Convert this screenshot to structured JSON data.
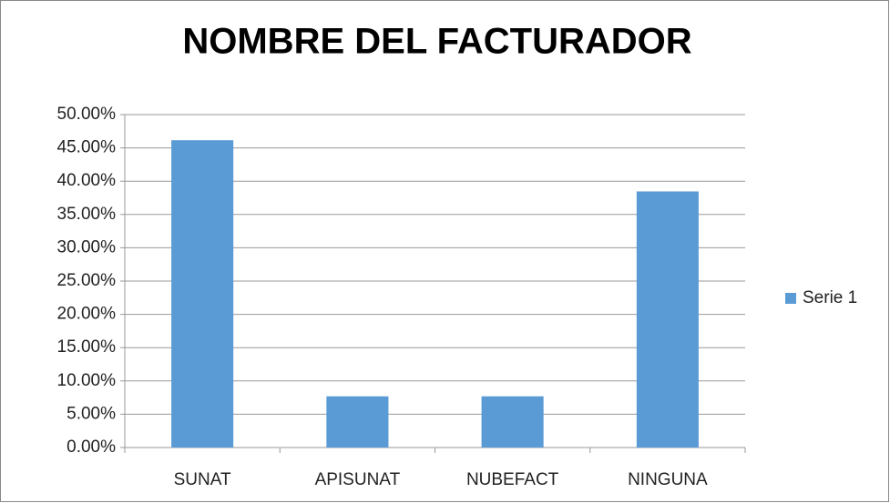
{
  "chart_data": {
    "type": "bar",
    "title": "NOMBRE DEL FACTURADOR",
    "categories": [
      "SUNAT",
      "APISUNAT",
      "NUBEFACT",
      "NINGUNA"
    ],
    "series": [
      {
        "name": "Serie 1",
        "color": "#5b9bd5",
        "values": [
          46.15,
          7.69,
          7.69,
          38.46
        ]
      }
    ],
    "ylim": [
      0,
      50
    ],
    "yticks": [
      {
        "value": 0,
        "label": "0.00%"
      },
      {
        "value": 5,
        "label": "5.00%"
      },
      {
        "value": 10,
        "label": "10.00%"
      },
      {
        "value": 15,
        "label": "15.00%"
      },
      {
        "value": 20,
        "label": "20.00%"
      },
      {
        "value": 25,
        "label": "25.00%"
      },
      {
        "value": 30,
        "label": "30.00%"
      },
      {
        "value": 35,
        "label": "35.00%"
      },
      {
        "value": 40,
        "label": "40.00%"
      },
      {
        "value": 45,
        "label": "45.00%"
      },
      {
        "value": 50,
        "label": "50.00%"
      }
    ],
    "grid": true,
    "legend": "right"
  }
}
